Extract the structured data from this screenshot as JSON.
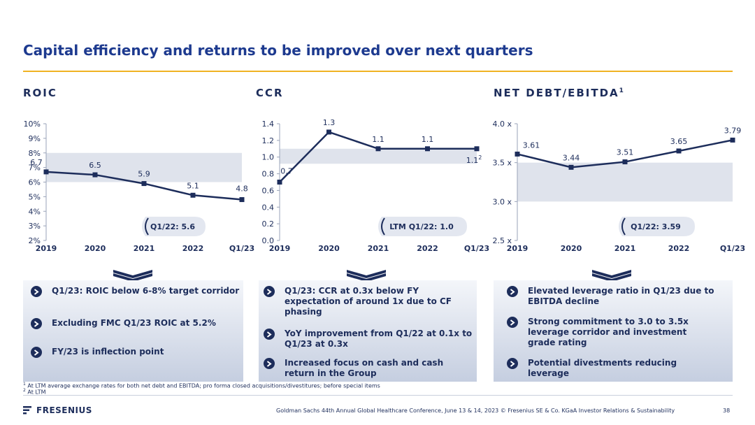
{
  "title": "Capital efficiency and returns to be improved over next quarters",
  "sections": {
    "roic": "ROIC",
    "ccr": "CCR",
    "nde": "NET DEBT/EBITDA",
    "nde_sup": "1"
  },
  "colors": {
    "accent": "#f0b323",
    "navy": "#1d2d5b",
    "band": "#dfe3ec",
    "title": "#1d3a8f"
  },
  "chart_data": [
    {
      "type": "line",
      "title": "ROIC",
      "categories": [
        "2019",
        "2020",
        "2021",
        "2022",
        "Q1/23"
      ],
      "series": [
        {
          "values": [
            6.7,
            6.5,
            5.9,
            5.1,
            4.8
          ]
        }
      ],
      "data_labels": [
        "6.7",
        "6.5",
        "5.9",
        "5.1",
        "4.8"
      ],
      "y_ticks": [
        "2%",
        "3%",
        "4%",
        "5%",
        "6%",
        "7%",
        "8%",
        "9%",
        "10%"
      ],
      "ylim": [
        2,
        10
      ],
      "target_band": [
        6,
        8
      ],
      "reference_label": "Q1/22: 5.6",
      "reference_value": 5.6
    },
    {
      "type": "line",
      "title": "CCR",
      "categories": [
        "2019",
        "2020",
        "2021",
        "2022",
        "Q1/23"
      ],
      "series": [
        {
          "values": [
            0.7,
            1.3,
            1.1,
            1.1,
            1.1
          ]
        }
      ],
      "data_labels": [
        "0.7",
        "1.3",
        "1.1",
        "1.1",
        "1.1"
      ],
      "last_label_sup": "2",
      "y_ticks": [
        "0.0",
        "0.2",
        "0.4",
        "0.6",
        "0.8",
        "1.0",
        "1.2",
        "1.4"
      ],
      "ylim": [
        0,
        1.4
      ],
      "target_band": [
        0.92,
        1.1
      ],
      "reference_label": "LTM Q1/22: 1.0",
      "reference_value": 1.0
    },
    {
      "type": "line",
      "title": "NET DEBT/EBITDA",
      "categories": [
        "2019",
        "2020",
        "2021",
        "2022",
        "Q1/23"
      ],
      "series": [
        {
          "values": [
            3.61,
            3.44,
            3.51,
            3.65,
            3.79
          ]
        }
      ],
      "data_labels": [
        "3.61",
        "3.44",
        "3.51",
        "3.65",
        "3.79"
      ],
      "y_ticks": [
        "2.5 x",
        "3.0 x",
        "3.5 x",
        "4.0 x"
      ],
      "ylim": [
        2.5,
        4.0
      ],
      "target_band": [
        3.0,
        3.5
      ],
      "reference_label": "Q1/22: 3.59",
      "reference_value": 3.59
    }
  ],
  "panels": [
    [
      "Q1/23: ROIC below 6-8% target corridor",
      "Excluding FMC Q1/23 ROIC at 5.2%",
      "FY/23 is inflection point"
    ],
    [
      "Q1/23: CCR at 0.3x below FY expectation of around 1x due to CF phasing",
      "YoY improvement from Q1/22 at 0.1x to Q1/23 at 0.3x",
      "Increased focus on cash and cash return in the Group"
    ],
    [
      "Elevated leverage ratio in Q1/23 due to EBITDA decline",
      "Strong commitment to 3.0 to 3.5x leverage corridor and investment grade rating",
      "Potential divestments reducing leverage"
    ]
  ],
  "footnotes": [
    {
      "sup": "1",
      "text": "At LTM average exchange rates for both net debt and EBITDA; pro forma closed acquisitions/divestitures; before special items"
    },
    {
      "sup": "2",
      "text": "At LTM"
    }
  ],
  "logo": "FRESENIUS",
  "footer": "Goldman Sachs 44th Annual Global Healthcare Conference, June 13 & 14, 2023 © Fresenius SE & Co. KGaA Investor Relations & Sustainability",
  "page_number": "38"
}
